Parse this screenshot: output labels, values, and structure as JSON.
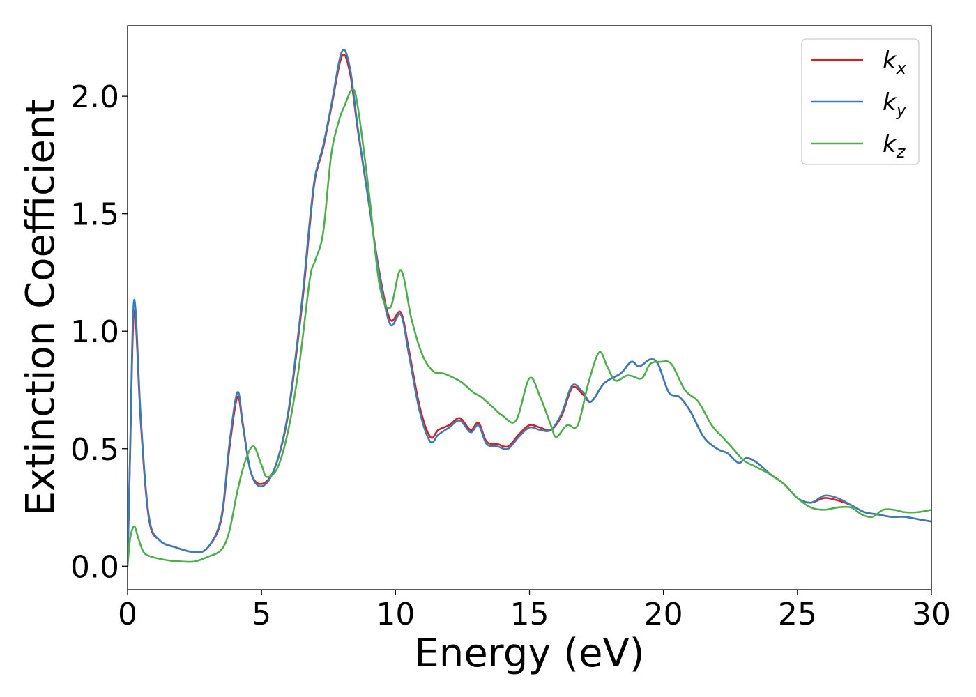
{
  "chart_data": {
    "type": "line",
    "xlabel": "Energy (eV)",
    "ylabel": "Extinction Coefficient",
    "xlim": [
      0,
      30
    ],
    "ylim": [
      -0.1,
      2.3
    ],
    "xticks": [
      "0",
      "5",
      "10",
      "15",
      "20",
      "25",
      "30"
    ],
    "yticks": [
      "0.0",
      "0.5",
      "1.0",
      "1.5",
      "2.0"
    ],
    "grid": false,
    "legend_position": "top-right",
    "series": [
      {
        "name": "kx",
        "legend_base": "k",
        "legend_sub": "x",
        "color": "#e41a1c",
        "x": [
          0,
          0.1,
          0.2,
          0.3,
          0.5,
          0.8,
          1.2,
          1.8,
          2.5,
          3.0,
          3.5,
          3.8,
          4.1,
          4.3,
          4.6,
          5.0,
          5.5,
          6.0,
          6.5,
          6.8,
          7.0,
          7.3,
          7.6,
          8.0,
          8.3,
          8.6,
          9.0,
          9.4,
          9.8,
          10.2,
          10.5,
          10.9,
          11.3,
          11.6,
          12.0,
          12.4,
          12.8,
          13.1,
          13.4,
          13.8,
          14.2,
          14.6,
          15.0,
          15.4,
          15.8,
          16.2,
          16.6,
          17.0,
          17.3,
          17.8,
          18.4,
          18.8,
          19.1,
          19.5,
          19.8,
          20.2,
          20.6,
          21.0,
          21.5,
          22.0,
          22.4,
          22.8,
          23.1,
          23.5,
          24.0,
          24.5,
          25.0,
          25.5,
          26.0,
          26.5,
          27.0,
          27.5,
          28.0,
          28.5,
          29.0,
          29.5,
          30.0
        ],
        "values": [
          0.0,
          0.5,
          1.0,
          1.05,
          0.6,
          0.2,
          0.11,
          0.08,
          0.06,
          0.08,
          0.2,
          0.5,
          0.72,
          0.6,
          0.4,
          0.35,
          0.42,
          0.65,
          1.1,
          1.45,
          1.65,
          1.78,
          1.95,
          2.17,
          2.1,
          1.85,
          1.55,
          1.25,
          1.05,
          1.08,
          0.92,
          0.68,
          0.55,
          0.58,
          0.6,
          0.63,
          0.58,
          0.61,
          0.53,
          0.52,
          0.51,
          0.56,
          0.6,
          0.59,
          0.58,
          0.64,
          0.76,
          0.73,
          0.7,
          0.78,
          0.82,
          0.87,
          0.85,
          0.88,
          0.86,
          0.74,
          0.72,
          0.66,
          0.55,
          0.5,
          0.48,
          0.44,
          0.46,
          0.44,
          0.39,
          0.35,
          0.29,
          0.27,
          0.29,
          0.28,
          0.26,
          0.23,
          0.22,
          0.21,
          0.21,
          0.2,
          0.19
        ]
      },
      {
        "name": "ky",
        "legend_base": "k",
        "legend_sub": "y",
        "color": "#377eb8",
        "x": [
          0,
          0.1,
          0.2,
          0.3,
          0.5,
          0.8,
          1.2,
          1.8,
          2.5,
          3.0,
          3.5,
          3.8,
          4.1,
          4.3,
          4.6,
          5.0,
          5.5,
          6.0,
          6.5,
          6.8,
          7.0,
          7.3,
          7.6,
          8.0,
          8.3,
          8.6,
          9.0,
          9.4,
          9.8,
          10.2,
          10.5,
          10.9,
          11.3,
          11.6,
          12.0,
          12.4,
          12.8,
          13.1,
          13.4,
          13.8,
          14.2,
          14.6,
          15.0,
          15.4,
          15.8,
          16.2,
          16.6,
          17.0,
          17.3,
          17.8,
          18.4,
          18.8,
          19.1,
          19.5,
          19.8,
          20.2,
          20.6,
          21.0,
          21.5,
          22.0,
          22.4,
          22.8,
          23.1,
          23.5,
          24.0,
          24.5,
          25.0,
          25.5,
          26.0,
          26.5,
          27.0,
          27.5,
          28.0,
          28.5,
          29.0,
          29.5,
          30.0
        ],
        "values": [
          0.0,
          0.52,
          1.05,
          1.09,
          0.62,
          0.21,
          0.11,
          0.08,
          0.06,
          0.08,
          0.21,
          0.52,
          0.74,
          0.61,
          0.4,
          0.34,
          0.42,
          0.66,
          1.12,
          1.47,
          1.66,
          1.79,
          1.96,
          2.19,
          2.12,
          1.86,
          1.55,
          1.24,
          1.03,
          1.07,
          0.9,
          0.66,
          0.53,
          0.56,
          0.59,
          0.62,
          0.57,
          0.6,
          0.52,
          0.51,
          0.5,
          0.55,
          0.59,
          0.58,
          0.58,
          0.65,
          0.77,
          0.74,
          0.7,
          0.78,
          0.82,
          0.87,
          0.85,
          0.88,
          0.86,
          0.74,
          0.72,
          0.66,
          0.55,
          0.5,
          0.48,
          0.44,
          0.46,
          0.44,
          0.39,
          0.35,
          0.29,
          0.27,
          0.3,
          0.29,
          0.26,
          0.23,
          0.22,
          0.21,
          0.21,
          0.2,
          0.19
        ]
      },
      {
        "name": "kz",
        "legend_base": "k",
        "legend_sub": "z",
        "color": "#4daf4a",
        "x": [
          0,
          0.1,
          0.25,
          0.4,
          0.6,
          0.9,
          1.5,
          2.0,
          2.5,
          3.0,
          3.5,
          3.8,
          4.1,
          4.4,
          4.7,
          5.0,
          5.2,
          5.6,
          6.0,
          6.4,
          6.8,
          7.0,
          7.3,
          7.6,
          7.9,
          8.1,
          8.4,
          8.6,
          9.0,
          9.4,
          9.8,
          10.2,
          10.6,
          11.0,
          11.4,
          11.8,
          12.2,
          12.5,
          12.9,
          13.2,
          13.6,
          14.0,
          14.5,
          15.0,
          15.4,
          15.8,
          16.0,
          16.4,
          16.8,
          17.2,
          17.6,
          17.9,
          18.2,
          18.6,
          18.8,
          19.2,
          19.5,
          19.9,
          20.3,
          20.8,
          21.3,
          21.8,
          22.2,
          22.6,
          23.0,
          23.5,
          24.0,
          24.5,
          25.0,
          25.5,
          26.0,
          26.5,
          27.0,
          27.4,
          27.8,
          28.2,
          28.6,
          29.0,
          29.5,
          30.0
        ],
        "values": [
          0.0,
          0.12,
          0.17,
          0.12,
          0.06,
          0.04,
          0.025,
          0.02,
          0.02,
          0.04,
          0.07,
          0.15,
          0.32,
          0.45,
          0.51,
          0.43,
          0.38,
          0.42,
          0.58,
          0.85,
          1.22,
          1.3,
          1.42,
          1.75,
          1.9,
          1.96,
          2.03,
          1.95,
          1.6,
          1.2,
          1.1,
          1.26,
          1.05,
          0.9,
          0.83,
          0.82,
          0.8,
          0.78,
          0.74,
          0.72,
          0.68,
          0.64,
          0.62,
          0.8,
          0.72,
          0.6,
          0.55,
          0.6,
          0.6,
          0.78,
          0.91,
          0.85,
          0.79,
          0.81,
          0.81,
          0.8,
          0.86,
          0.87,
          0.86,
          0.75,
          0.7,
          0.6,
          0.55,
          0.5,
          0.45,
          0.42,
          0.39,
          0.35,
          0.29,
          0.25,
          0.24,
          0.25,
          0.25,
          0.22,
          0.21,
          0.24,
          0.24,
          0.23,
          0.23,
          0.24
        ]
      }
    ]
  }
}
